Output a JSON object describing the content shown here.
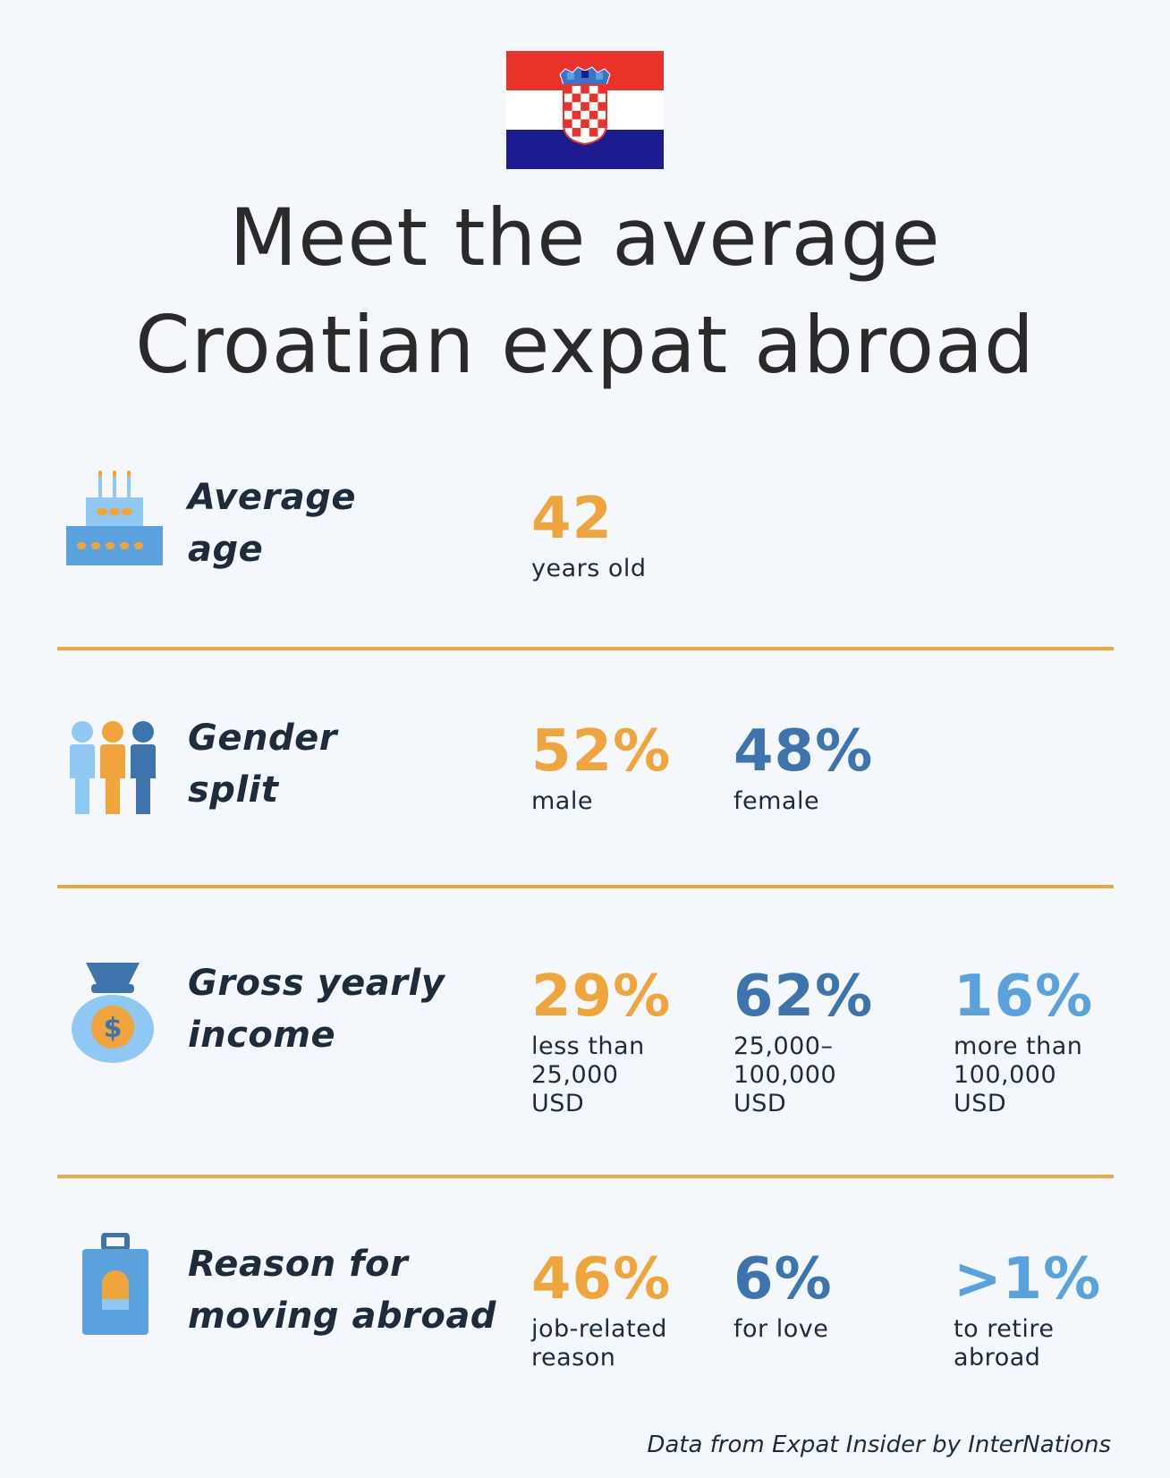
{
  "title": {
    "line1": "Meet the average",
    "line2": "Croatian expat abroad"
  },
  "colors": {
    "orange": "#f0a43c",
    "dark_blue": "#3d74ad",
    "light_blue": "#5aa2de"
  },
  "rows": [
    {
      "icon": "birthday-cake-icon",
      "label_line1": "Average",
      "label_line2": "age",
      "stats": [
        {
          "value": "42",
          "desc": "years old"
        }
      ]
    },
    {
      "icon": "people-group-icon",
      "label_line1": "Gender",
      "label_line2": "split",
      "stats": [
        {
          "value": "52%",
          "desc": "male"
        },
        {
          "value": "48%",
          "desc": "female"
        }
      ]
    },
    {
      "icon": "money-bag-icon",
      "label_line1": "Gross yearly",
      "label_line2": "income",
      "stats": [
        {
          "value": "29%",
          "desc_l1": "less than",
          "desc_l2": "25,000",
          "desc_l3": "USD"
        },
        {
          "value": "62%",
          "desc_l1": "25,000–",
          "desc_l2": "100,000",
          "desc_l3": "USD"
        },
        {
          "value": "16%",
          "desc_l1": "more than",
          "desc_l2": "100,000",
          "desc_l3": "USD"
        }
      ]
    },
    {
      "icon": "suitcase-icon",
      "label_line1": "Reason for",
      "label_line2": "moving abroad",
      "stats": [
        {
          "value": "46%",
          "desc_l1": "job-related",
          "desc_l2": "reason"
        },
        {
          "value": "6%",
          "desc_l1": "for love"
        },
        {
          "value": ">1%",
          "desc_l1": "to retire",
          "desc_l2": "abroad"
        }
      ]
    }
  ],
  "footer": "Data from Expat Insider by InterNations"
}
